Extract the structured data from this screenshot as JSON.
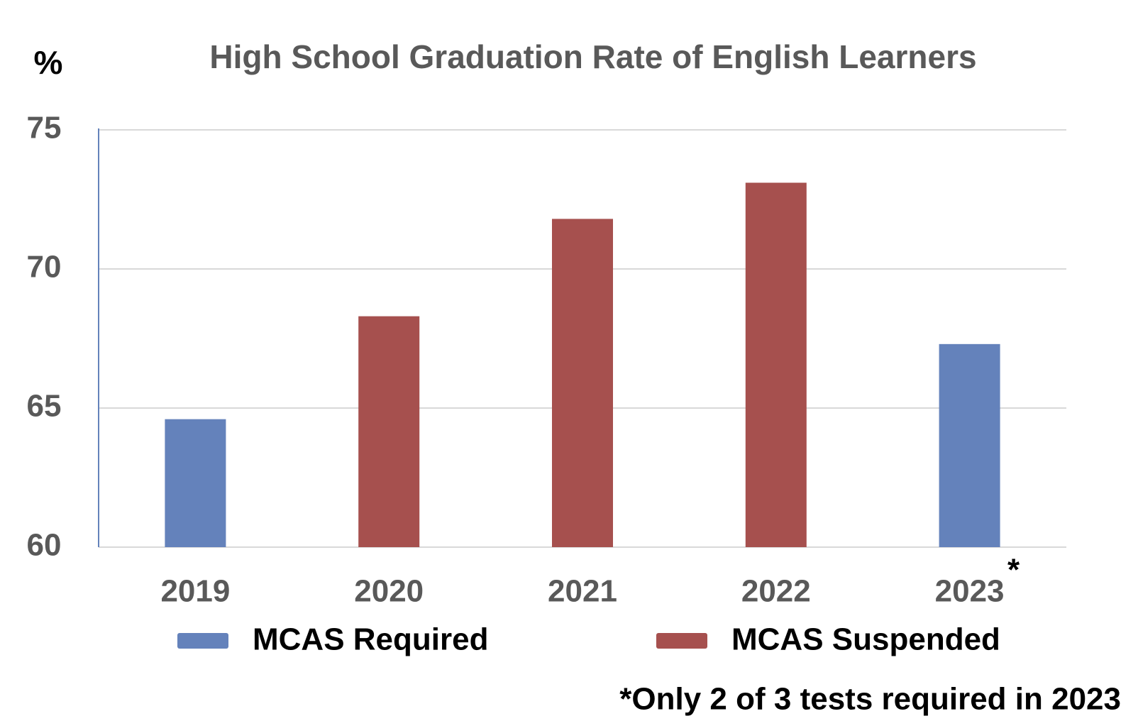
{
  "chart_data": {
    "type": "bar",
    "title": "High School Graduation Rate of English Learners",
    "y_unit": "%",
    "categories": [
      "2019",
      "2020",
      "2021",
      "2022",
      "2023"
    ],
    "series": [
      {
        "name": "MCAS Required",
        "color": "#6482bb",
        "values": [
          64.6,
          null,
          null,
          null,
          67.3
        ]
      },
      {
        "name": "MCAS Suspended",
        "color": "#a6504e",
        "values": [
          null,
          68.3,
          71.8,
          73.1,
          null
        ]
      }
    ],
    "ylim": [
      60,
      75
    ],
    "yticks": [
      60,
      65,
      70,
      75
    ],
    "grid": true,
    "annotation": "*",
    "footnote": "*Only 2 of 3 tests required in 2023"
  }
}
